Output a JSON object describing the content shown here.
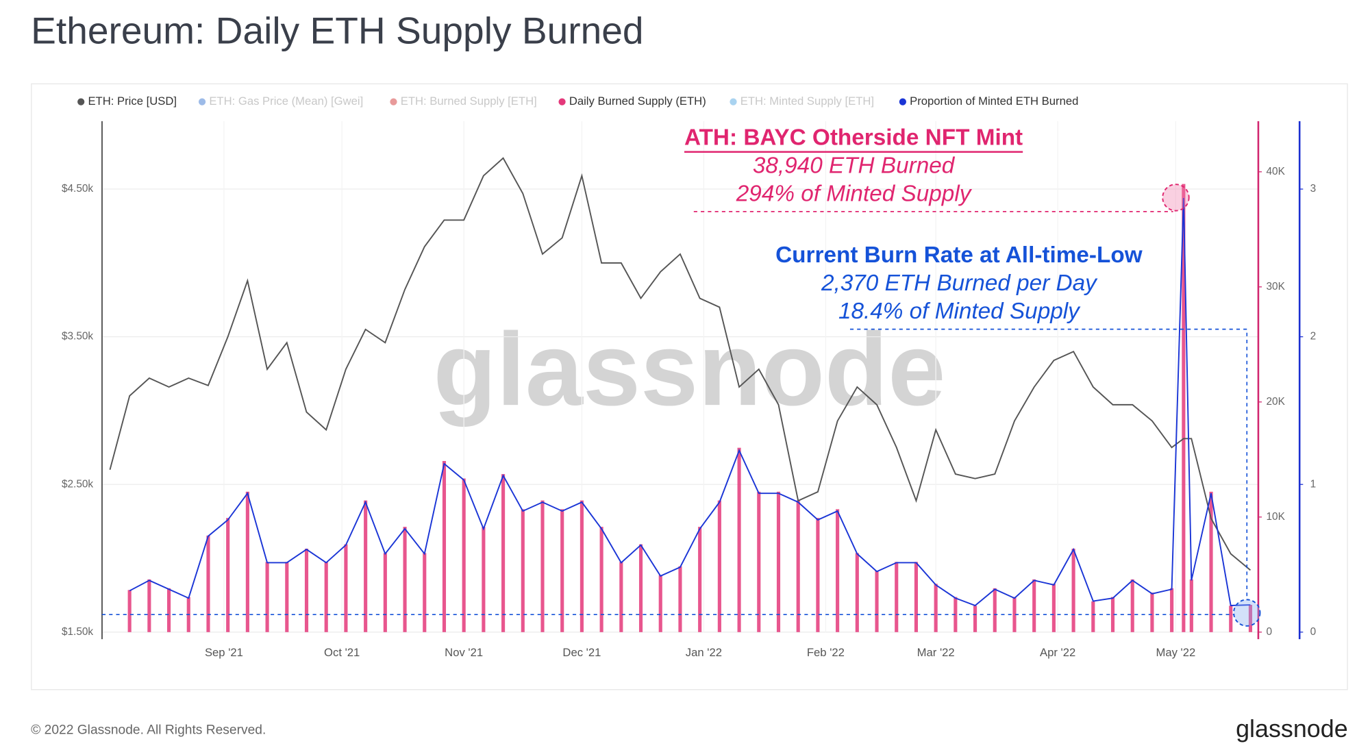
{
  "chart_data": {
    "type": "combo",
    "title": "Ethereum: Daily ETH Supply Burned",
    "x": [
      2,
      7,
      12,
      17,
      22,
      27,
      32,
      37,
      42,
      47,
      52,
      57,
      62,
      67,
      72,
      77,
      82,
      87,
      92,
      97,
      102,
      107,
      112,
      117,
      122,
      127,
      132,
      137,
      142,
      147,
      152,
      157,
      162,
      167,
      172,
      177,
      182,
      187,
      192,
      197,
      202,
      207,
      212,
      217,
      222,
      227,
      232,
      237,
      242,
      247,
      252,
      257,
      262,
      267,
      272,
      275,
      277,
      282,
      287,
      292
    ],
    "xlim": [
      0,
      294
    ],
    "xticks": [
      {
        "value": 31,
        "label": "Sep '21"
      },
      {
        "value": 61,
        "label": "Oct '21"
      },
      {
        "value": 92,
        "label": "Nov '21"
      },
      {
        "value": 122,
        "label": "Dec '21"
      },
      {
        "value": 153,
        "label": "Jan '22"
      },
      {
        "value": 184,
        "label": "Feb '22"
      },
      {
        "value": 212,
        "label": "Mar '22"
      },
      {
        "value": 243,
        "label": "Apr '22"
      },
      {
        "value": 273,
        "label": "May '22"
      }
    ],
    "ylim": [
      1500,
      4960
    ],
    "yticks": [
      {
        "value": 1500,
        "label": "$1.50k"
      },
      {
        "value": 2500,
        "label": "$2.50k"
      },
      {
        "value": 3500,
        "label": "$3.50k"
      },
      {
        "value": 4500,
        "label": "$4.50k"
      }
    ],
    "y2lim": [
      0,
      44400
    ],
    "y2ticks": [
      0,
      {
        "value": 10000,
        "label": "10K"
      },
      {
        "value": 20000,
        "label": "20K"
      },
      {
        "value": 30000,
        "label": "30K"
      },
      {
        "value": 40000,
        "label": "40K"
      }
    ],
    "y3lim": [
      0,
      3.46
    ],
    "y3ticks": [
      0,
      1,
      2,
      3
    ],
    "grid": true,
    "series": [
      {
        "name": "ETH: Price [USD]",
        "type": "line",
        "color": "#555555",
        "hidden": false,
        "values": [
          2600,
          3100,
          3220,
          3160,
          3220,
          3170,
          3500,
          3880,
          3280,
          3460,
          2990,
          2870,
          3280,
          3550,
          3460,
          3820,
          4110,
          4290,
          4290,
          4590,
          4710,
          4470,
          4060,
          4170,
          4590,
          4000,
          4000,
          3760,
          3940,
          4060,
          3760,
          3700,
          3160,
          3280,
          3040,
          2390,
          2450,
          2930,
          3160,
          3040,
          2750,
          2390,
          2870,
          2570,
          2540,
          2570,
          2930,
          3160,
          3340,
          3400,
          3160,
          3040,
          3040,
          2930,
          2750,
          2810,
          2810,
          2270,
          2030,
          1920
        ]
      },
      {
        "name": "ETH: Gas Price (Mean) [Gwei]",
        "type": "line",
        "color": "#9dbbe8",
        "hidden": true
      },
      {
        "name": "ETH: Burned Supply [ETH]",
        "type": "line",
        "color": "#e89a9a",
        "hidden": true
      },
      {
        "name": "Daily Burned Supply (ETH)",
        "type": "bar",
        "axis": "y2",
        "color": "#e4387a",
        "hidden": false,
        "values": [
          null,
          3660,
          4580,
          3810,
          3050,
          8390,
          9920,
          12200,
          6100,
          6100,
          7250,
          6100,
          7630,
          11440,
          6870,
          9150,
          6870,
          14870,
          13350,
          9150,
          13730,
          10680,
          11440,
          10680,
          11440,
          9150,
          6100,
          7630,
          4960,
          5720,
          9150,
          11440,
          16020,
          12200,
          12200,
          11440,
          9920,
          10680,
          6870,
          5340,
          6100,
          6100,
          4200,
          3050,
          2290,
          3810,
          3050,
          4580,
          4200,
          7250,
          2670,
          3050,
          4580,
          3430,
          3810,
          38940,
          4580,
          12200,
          2290,
          2370
        ]
      },
      {
        "name": "ETH: Minted Supply [ETH]",
        "type": "line",
        "color": "#a9d3f0",
        "hidden": true
      },
      {
        "name": "Proportion of Minted ETH Burned",
        "type": "line",
        "axis": "y3",
        "color": "#1a35d6",
        "hidden": false,
        "values": [
          null,
          0.28,
          0.35,
          0.29,
          0.23,
          0.65,
          0.76,
          0.94,
          0.47,
          0.47,
          0.56,
          0.47,
          0.59,
          0.88,
          0.53,
          0.7,
          0.53,
          1.14,
          1.03,
          0.7,
          1.06,
          0.82,
          0.88,
          0.82,
          0.88,
          0.7,
          0.47,
          0.59,
          0.38,
          0.44,
          0.7,
          0.88,
          1.23,
          0.94,
          0.94,
          0.88,
          0.76,
          0.82,
          0.53,
          0.41,
          0.47,
          0.47,
          0.32,
          0.23,
          0.18,
          0.29,
          0.23,
          0.35,
          0.32,
          0.56,
          0.21,
          0.23,
          0.35,
          0.26,
          0.29,
          2.94,
          0.35,
          0.94,
          0.18,
          0.184
        ]
      }
    ],
    "annotations": [
      {
        "text": "ATH: BAYC Otherside NFT Mint",
        "color": "#e0256f"
      },
      {
        "text": "38,940 ETH Burned",
        "color": "#e0256f"
      },
      {
        "text": "294% of Minted Supply",
        "color": "#e0256f"
      },
      {
        "text": "Current Burn Rate at All-time-Low",
        "color": "#1552d8"
      },
      {
        "text": "2,370 ETH Burned per Day",
        "color": "#1552d8"
      },
      {
        "text": "18.4% of Minted Supply",
        "color": "#1552d8"
      }
    ],
    "watermark": "glassnode",
    "footer": "© 2022 Glassnode. All Rights Reserved.",
    "logo": "glassnode"
  }
}
